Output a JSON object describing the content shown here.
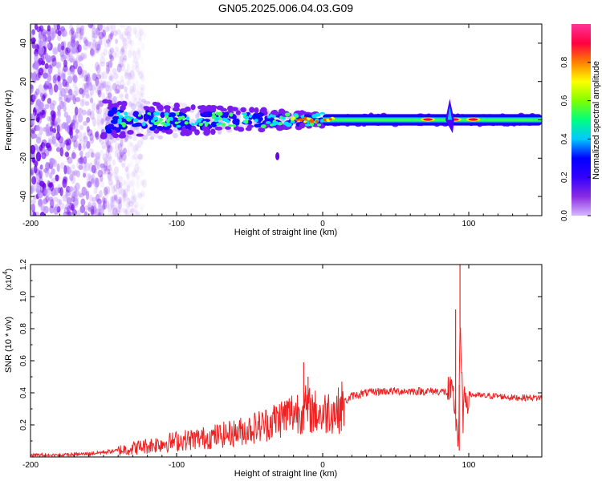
{
  "title": "GN05.2025.006.04.03.G09",
  "chart_data": [
    {
      "type": "heatmap",
      "title": "GN05.2025.006.04.03.G09",
      "xlabel": "Height of straight line (km)",
      "ylabel": "Frequency (Hz)",
      "xlim": [
        -200,
        150
      ],
      "ylim": [
        -50,
        50
      ],
      "xticks": [
        "-200",
        "-100",
        "0",
        "100"
      ],
      "xtick_values": [
        -200,
        -100,
        0,
        100
      ],
      "yticks": [
        "-40",
        "-20",
        "0",
        "20",
        "40"
      ],
      "ytick_values": [
        -40,
        -20,
        0,
        20,
        40
      ],
      "colorbar": {
        "label": "Normalized spectral amplitude",
        "range": [
          0.0,
          1.0
        ],
        "ticks": [
          "0.0",
          "0.2",
          "0.4",
          "0.6",
          "0.8"
        ],
        "tick_values": [
          0.0,
          0.2,
          0.4,
          0.6,
          0.8
        ],
        "colors": [
          "#d8b8ff",
          "#8a2be2",
          "#3300ff",
          "#0000ff",
          "#00c8ff",
          "#00ff80",
          "#80ff00",
          "#ffff00",
          "#ff8000",
          "#ff0040",
          "#ff3399"
        ]
      },
      "features": {
        "noise_region_x": [
          -200,
          -130
        ],
        "band_start_x": -150,
        "band_center_hz": 0,
        "spike_x": 87,
        "spike_peak_hz": 11,
        "hot_spots_x": [
          72,
          90,
          103
        ],
        "isolated_blob": {
          "x": -31,
          "hz": -19
        }
      }
    },
    {
      "type": "line",
      "xlabel": "Height of straight line (km)",
      "ylabel": "SNR (10 * v/v)",
      "multiplier_label": "(x10",
      "multiplier_exp": "4",
      "xlim": [
        -200,
        150
      ],
      "ylim": [
        0,
        1.2
      ],
      "xticks": [
        "-200",
        "-100",
        "0",
        "100"
      ],
      "xtick_values": [
        -200,
        -100,
        0,
        100
      ],
      "yticks": [
        "0.2",
        "0.4",
        "0.6",
        "0.8",
        "1.0",
        "1.2"
      ],
      "ytick_values": [
        0.2,
        0.4,
        0.6,
        0.8,
        1.0,
        1.2
      ],
      "series": [
        {
          "name": "SNR",
          "color": "#ee2222",
          "x": [
            -200,
            -180,
            -160,
            -140,
            -120,
            -100,
            -80,
            -60,
            -40,
            -30,
            -20,
            -12,
            -5,
            0,
            5,
            10,
            15,
            20,
            30,
            40,
            50,
            60,
            70,
            80,
            86,
            90,
            93,
            94,
            96,
            98,
            100,
            110,
            120,
            130,
            140,
            150
          ],
          "values": [
            0.01,
            0.01,
            0.02,
            0.04,
            0.07,
            0.1,
            0.12,
            0.15,
            0.2,
            0.24,
            0.28,
            0.3,
            0.28,
            0.26,
            0.3,
            0.28,
            0.34,
            0.38,
            0.4,
            0.41,
            0.41,
            0.41,
            0.41,
            0.41,
            0.4,
            0.35,
            0.1,
            0.8,
            0.25,
            0.38,
            0.39,
            0.38,
            0.38,
            0.37,
            0.37,
            0.37
          ]
        }
      ],
      "peaks": [
        {
          "x": -13,
          "value": 0.59
        },
        {
          "x": -10,
          "value": 0.5
        },
        {
          "x": 91,
          "value": 0.92
        },
        {
          "x": 94,
          "value": 1.2
        },
        {
          "x": 93.5,
          "value": 0.04
        }
      ]
    }
  ]
}
